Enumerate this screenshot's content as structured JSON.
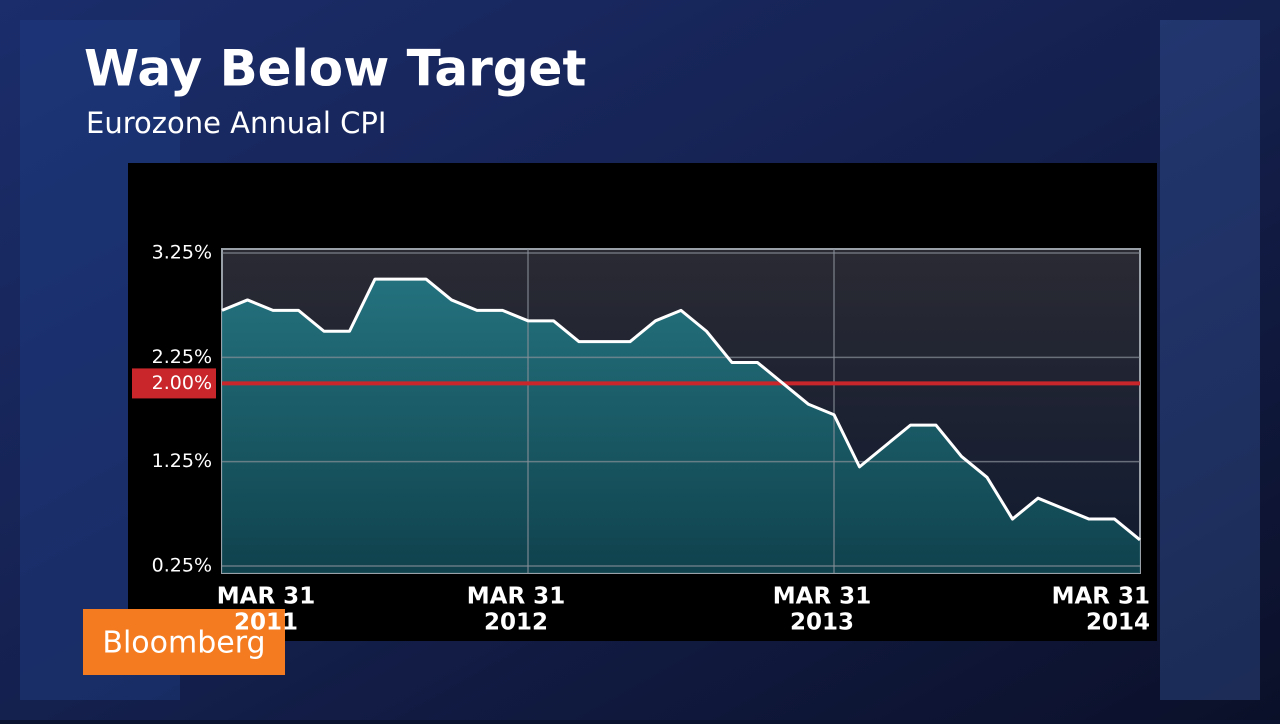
{
  "chart_data": {
    "type": "area",
    "title": "Way Below Target",
    "subtitle": "Eurozone Annual CPI",
    "categories": [
      [
        "MAR 31",
        "2011"
      ],
      null,
      null,
      null,
      null,
      null,
      null,
      null,
      null,
      null,
      null,
      null,
      [
        "MAR 31",
        "2012"
      ],
      null,
      null,
      null,
      null,
      null,
      null,
      null,
      null,
      null,
      null,
      null,
      [
        "MAR 31",
        "2013"
      ],
      null,
      null,
      null,
      null,
      null,
      null,
      null,
      null,
      null,
      null,
      null,
      [
        "MAR 31",
        "2014"
      ]
    ],
    "values": [
      2.7,
      2.8,
      2.7,
      2.7,
      2.5,
      2.5,
      3.0,
      3.0,
      3.0,
      2.8,
      2.7,
      2.7,
      2.6,
      2.6,
      2.4,
      2.4,
      2.4,
      2.6,
      2.7,
      2.5,
      2.2,
      2.2,
      2.0,
      1.8,
      1.7,
      1.2,
      1.4,
      1.6,
      1.6,
      1.3,
      1.1,
      0.7,
      0.9,
      0.8,
      0.7,
      0.7,
      0.5
    ],
    "color": "#ffffff",
    "fill": "#1e6d78",
    "ylim": [
      0.25,
      3.25
    ],
    "yticks": [
      {
        "value": 3.25,
        "label": "3.25%"
      },
      {
        "value": 2.25,
        "label": "2.25%"
      },
      {
        "value": 1.25,
        "label": "1.25%"
      },
      {
        "value": 0.25,
        "label": "0.25%"
      }
    ],
    "target": {
      "value": 2.0,
      "label": "2.00%",
      "color": "#c8262b"
    },
    "grid": true,
    "source": "Bloomberg"
  }
}
